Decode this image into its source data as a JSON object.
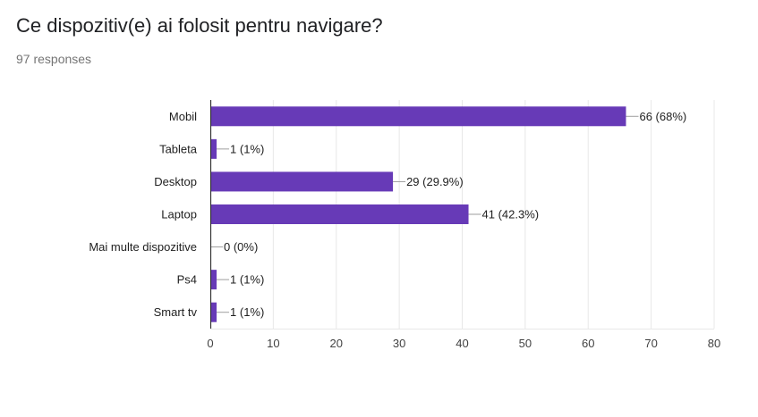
{
  "header": {
    "question": "Ce dispozitiv(e) ai folosit pentru navigare?",
    "responses": "97 responses"
  },
  "colors": {
    "bar": "#673ab7",
    "grid": "#e8e8e8",
    "axis": "#333333"
  },
  "chart_data": {
    "type": "bar",
    "orientation": "horizontal",
    "categories": [
      "Mobil",
      "Tableta",
      "Desktop",
      "Laptop",
      "Mai multe dispozitive",
      "Ps4",
      "Smart tv"
    ],
    "values": [
      66,
      1,
      29,
      41,
      0,
      1,
      1
    ],
    "data_labels": [
      "66 (68%)",
      "1 (1%)",
      "29 (29.9%)",
      "41 (42.3%)",
      "0 (0%)",
      "1 (1%)",
      "1 (1%)"
    ],
    "xlim": [
      0,
      80
    ],
    "xticks": [
      0,
      10,
      20,
      30,
      40,
      50,
      60,
      70,
      80
    ],
    "grid": true,
    "legend": "none"
  }
}
